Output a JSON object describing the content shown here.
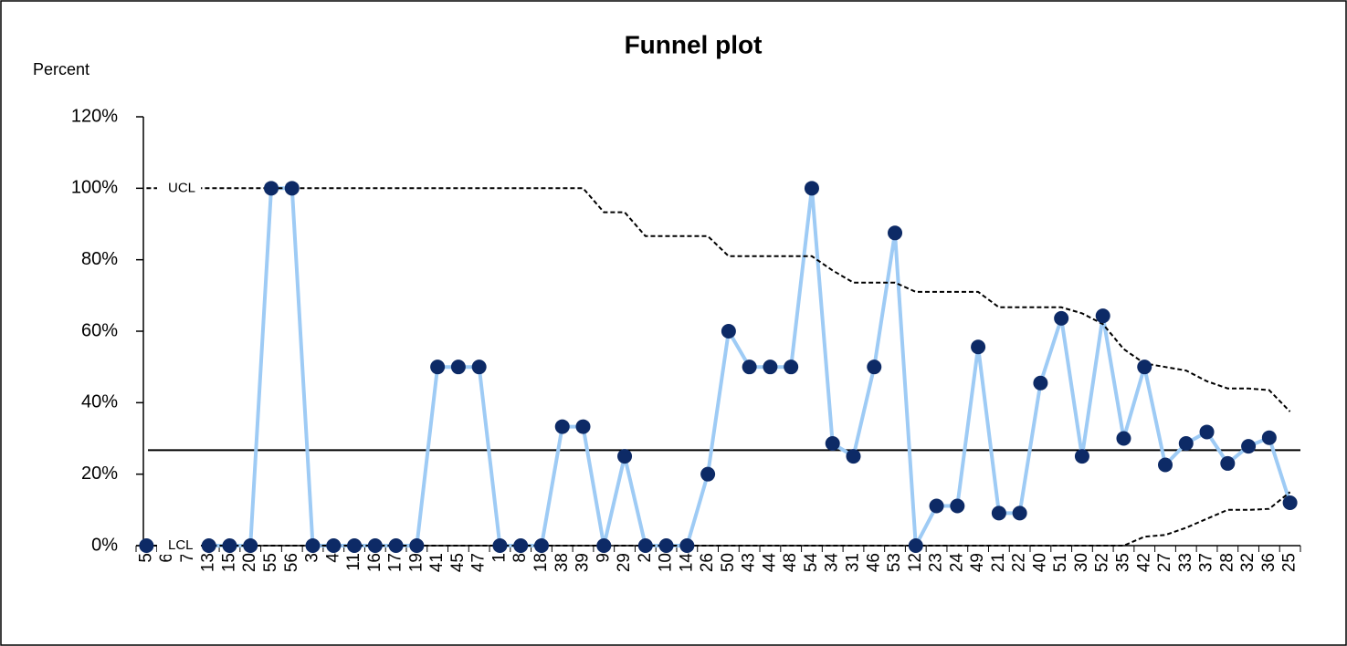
{
  "chart_data": {
    "type": "line",
    "title": "Funnel plot",
    "y_label": "Percent",
    "categories": [
      "5",
      "6",
      "7",
      "13",
      "15",
      "20",
      "55",
      "56",
      "3",
      "4",
      "11",
      "16",
      "17",
      "19",
      "41",
      "45",
      "47",
      "1",
      "8",
      "18",
      "38",
      "39",
      "9",
      "29",
      "2",
      "10",
      "14",
      "26",
      "50",
      "43",
      "44",
      "48",
      "54",
      "34",
      "31",
      "46",
      "53",
      "12",
      "23",
      "24",
      "49",
      "21",
      "22",
      "40",
      "51",
      "30",
      "52",
      "35",
      "42",
      "27",
      "33",
      "37",
      "28",
      "32",
      "36",
      "25"
    ],
    "series": [
      {
        "color": "#9ecbf5",
        "marker_color": "#0d2a66",
        "style": "markers",
        "values": [
          0,
          null,
          null,
          0,
          0,
          0,
          100,
          100,
          0,
          0,
          0,
          0,
          0,
          0,
          50,
          50,
          50,
          0,
          0,
          0,
          33.3,
          33.3,
          0,
          25,
          0,
          0,
          0,
          20,
          60,
          50,
          50,
          50,
          100,
          28.6,
          25,
          50,
          87.5,
          0,
          11.1,
          11.1,
          55.6,
          9.1,
          9.1,
          45.5,
          63.6,
          25,
          64.3,
          30,
          50,
          22.6,
          28.6,
          31.8,
          23,
          27.8,
          30.2,
          12
        ]
      },
      {
        "name": "UCL",
        "color": "#000000",
        "style": "dashed",
        "values": [
          100,
          100,
          100,
          100,
          100,
          100,
          100,
          100,
          100,
          100,
          100,
          100,
          100,
          100,
          100,
          100,
          100,
          100,
          100,
          100,
          100,
          100,
          93.3,
          93.3,
          86.6,
          86.6,
          86.6,
          86.6,
          81,
          81,
          81,
          81,
          81,
          77,
          73.6,
          73.6,
          73.6,
          71,
          71,
          71,
          71,
          66.7,
          66.7,
          66.7,
          66.7,
          65,
          62,
          55,
          51,
          50,
          49,
          46,
          44,
          44,
          43.5,
          37.5
        ]
      },
      {
        "name": "LCL",
        "color": "#000000",
        "style": "dashed",
        "values": [
          0,
          0,
          0,
          0,
          0,
          0,
          0,
          0,
          0,
          0,
          0,
          0,
          0,
          0,
          0,
          0,
          0,
          0,
          0,
          0,
          0,
          0,
          0,
          0,
          0,
          0,
          0,
          0,
          0,
          0,
          0,
          0,
          0,
          0,
          0,
          0,
          0,
          0,
          0,
          0,
          0,
          0,
          0,
          0,
          0,
          0,
          0,
          0,
          2.5,
          3,
          5,
          7.5,
          10,
          10,
          10.3,
          15
        ]
      }
    ],
    "center_line": 26.7,
    "center_color": "#000000",
    "ylim": [
      0,
      120
    ],
    "yticks": [
      {
        "value": 0,
        "label": "0%"
      },
      {
        "value": 20,
        "label": "20%"
      },
      {
        "value": 40,
        "label": "40%"
      },
      {
        "value": 60,
        "label": "60%"
      },
      {
        "value": 80,
        "label": "80%"
      },
      {
        "value": 100,
        "label": "100%"
      },
      {
        "value": 120,
        "label": "120%"
      }
    ],
    "grid": false
  }
}
